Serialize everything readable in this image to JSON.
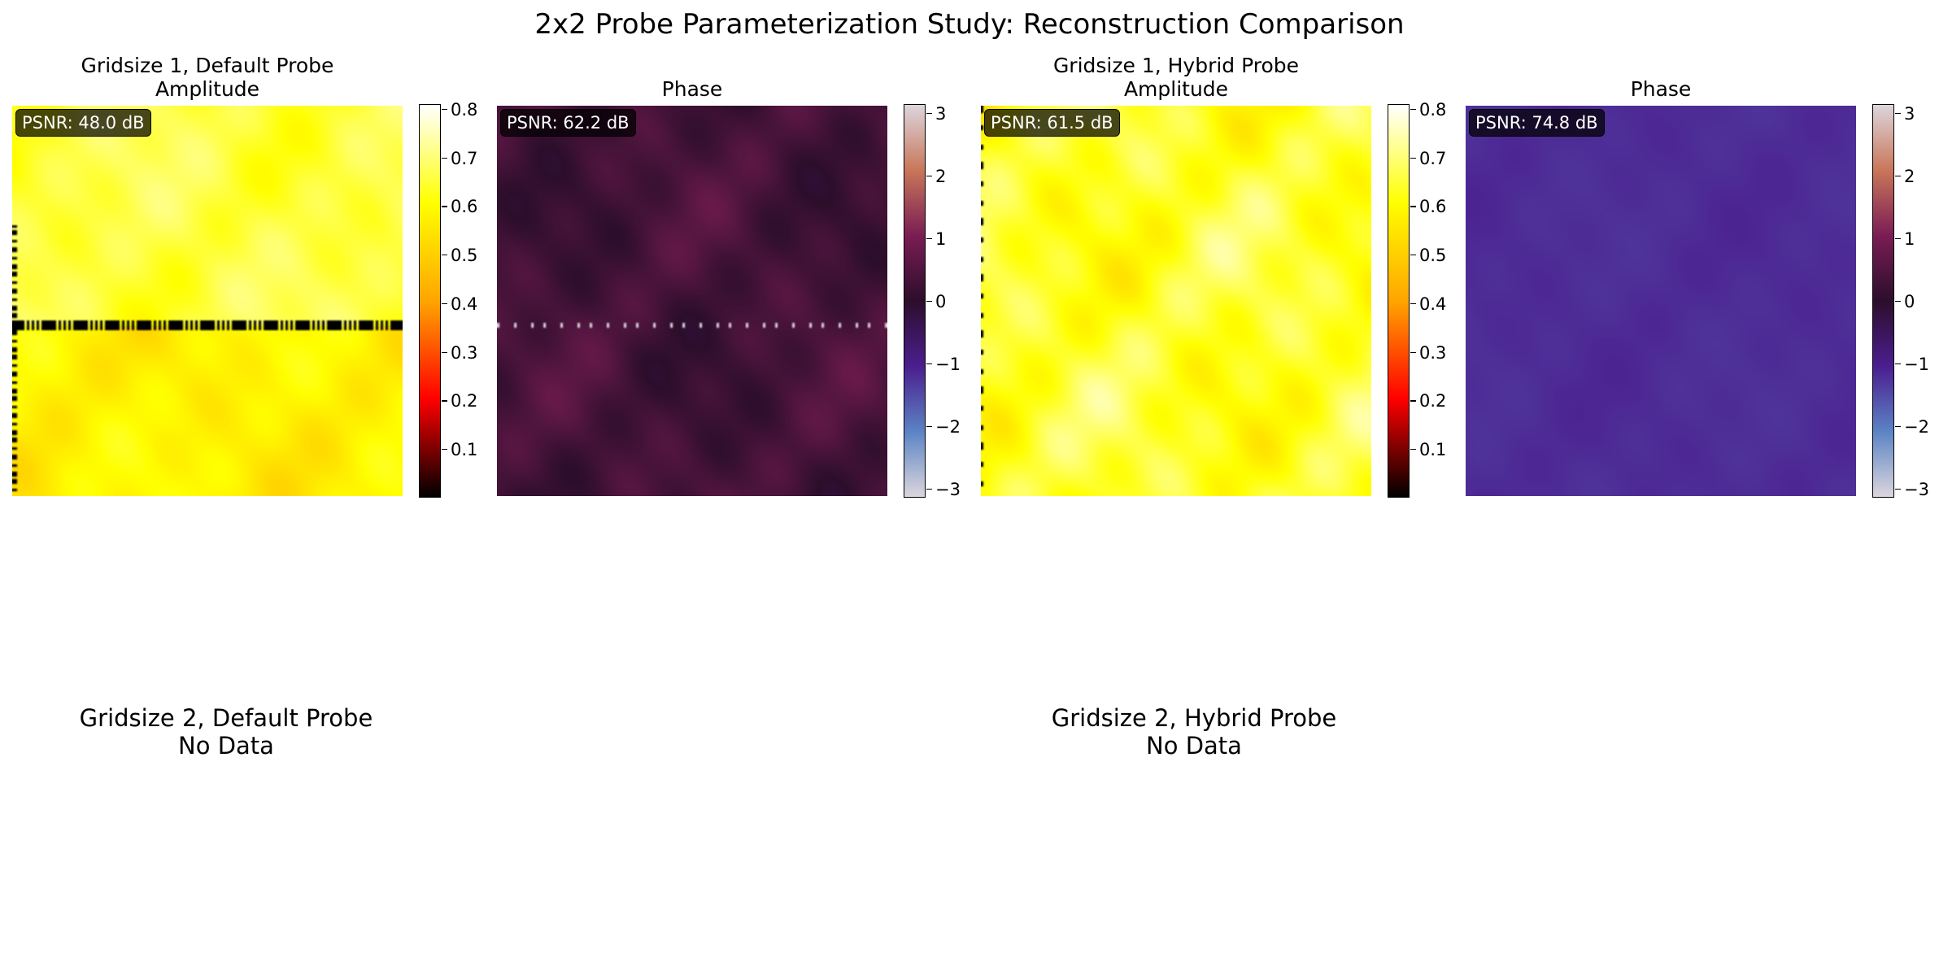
{
  "title": "2x2 Probe Parameterization Study: Reconstruction Comparison",
  "colors": {
    "amplitude_colormap": [
      "#000000",
      "#ff0000",
      "#ffa500",
      "#ffff00",
      "#ffffff"
    ],
    "phase_colormap": [
      "#dcd6dd",
      "#5b83c4",
      "#4b1e8f",
      "#2c0e2b",
      "#7a1d54",
      "#c9765a",
      "#dcd6dd"
    ],
    "default_phase_fill": "#3a1233",
    "hybrid_phase_fill": "#4a1a6b",
    "badge_bg": "#000000"
  },
  "chart_data": [
    {
      "type": "heatmap",
      "panel": "Gridsize 1, Default Probe",
      "title": "Gridsize 1, Default Probe\nAmplitude",
      "title_lines": [
        "Gridsize 1, Default Probe",
        "Amplitude"
      ],
      "quantity": "Amplitude",
      "annotation": "PSNR: 48.0 dB",
      "colorbar": {
        "range": [
          0.0,
          0.81
        ],
        "ticks": [
          "0.8",
          "0.7",
          "0.6",
          "0.5",
          "0.4",
          "0.3",
          "0.2",
          "0.1"
        ],
        "tick_values": [
          0.8,
          0.7,
          0.6,
          0.5,
          0.4,
          0.3,
          0.2,
          0.1
        ]
      }
    },
    {
      "type": "heatmap",
      "panel": "Gridsize 1, Default Probe",
      "title": "Phase",
      "quantity": "Phase",
      "annotation": "PSNR: 62.2 dB",
      "colorbar": {
        "range": [
          -3.14,
          3.14
        ],
        "ticks": [
          "3",
          "2",
          "1",
          "0",
          "−1",
          "−2",
          "−3"
        ],
        "tick_values": [
          3,
          2,
          1,
          0,
          -1,
          -2,
          -3
        ]
      }
    },
    {
      "type": "heatmap",
      "panel": "Gridsize 1, Hybrid Probe",
      "title": "Gridsize 1, Hybrid Probe\nAmplitude",
      "title_lines": [
        "Gridsize 1, Hybrid Probe",
        "Amplitude"
      ],
      "quantity": "Amplitude",
      "annotation": "PSNR: 61.5 dB",
      "colorbar": {
        "range": [
          0.0,
          0.81
        ],
        "ticks": [
          "0.8",
          "0.7",
          "0.6",
          "0.5",
          "0.4",
          "0.3",
          "0.2",
          "0.1"
        ],
        "tick_values": [
          0.8,
          0.7,
          0.6,
          0.5,
          0.4,
          0.3,
          0.2,
          0.1
        ]
      }
    },
    {
      "type": "heatmap",
      "panel": "Gridsize 1, Hybrid Probe",
      "title": "Phase",
      "quantity": "Phase",
      "annotation": "PSNR: 74.8 dB",
      "colorbar": {
        "range": [
          -3.14,
          3.14
        ],
        "ticks": [
          "3",
          "2",
          "1",
          "0",
          "−1",
          "−2",
          "−3"
        ],
        "tick_values": [
          3,
          2,
          1,
          0,
          -1,
          -2,
          -3
        ]
      }
    }
  ],
  "empty_panels": [
    {
      "line1": "Gridsize 2, Default Probe",
      "line2": "No Data"
    },
    {
      "line1": "Gridsize 2, Hybrid Probe",
      "line2": "No Data"
    }
  ]
}
